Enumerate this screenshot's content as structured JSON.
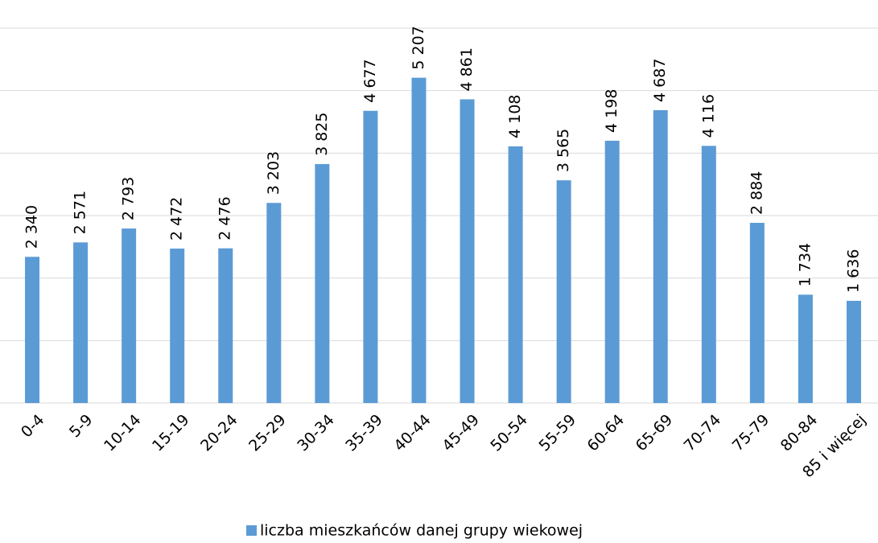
{
  "chart_data": {
    "type": "bar",
    "categories": [
      "0-4",
      "5-9",
      "10-14",
      "15-19",
      "20-24",
      "25-29",
      "30-34",
      "35-39",
      "40-44",
      "45-49",
      "50-54",
      "55-59",
      "60-64",
      "65-69",
      "70-74",
      "75-79",
      "80-84",
      "85 i więcej"
    ],
    "series": [
      {
        "name": "liczba mieszkańców danej grupy wiekowej",
        "color": "#5b9bd5",
        "values": [
          2340,
          2571,
          2793,
          2472,
          2476,
          3203,
          3825,
          4677,
          5207,
          4861,
          4108,
          3565,
          4198,
          4687,
          4116,
          2884,
          1734,
          1636
        ],
        "value_labels": [
          "2 340",
          "2 571",
          "2 793",
          "2 472",
          "2 476",
          "3 203",
          "3 825",
          "4 677",
          "5 207",
          "4 861",
          "4 108",
          "3 565",
          "4 198",
          "4 687",
          "4 116",
          "2 884",
          "1 734",
          "1 636"
        ]
      }
    ],
    "ylim": [
      0,
      6000
    ],
    "yticks": [
      0,
      1000,
      2000,
      3000,
      4000,
      5000,
      6000
    ],
    "grid": true,
    "legend": "bottom"
  }
}
